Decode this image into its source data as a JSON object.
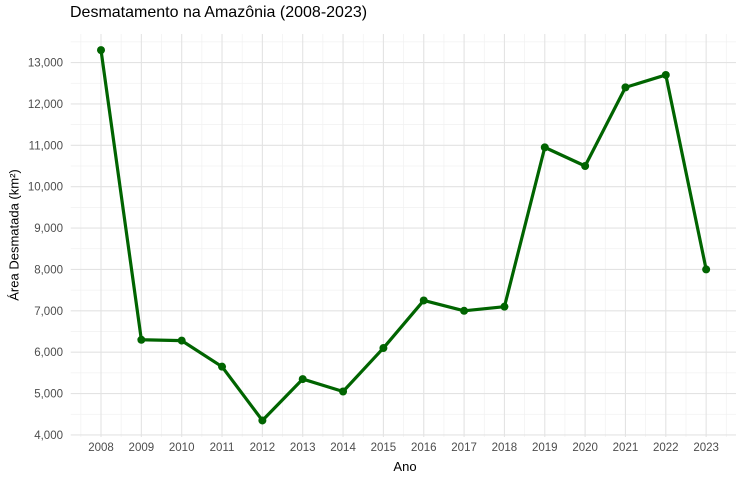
{
  "chart_data": {
    "type": "line",
    "title": "Desmatamento na Amazônia (2008-2023)",
    "xlabel": "Ano",
    "ylabel": "Área Desmatada (km²)",
    "categories": [
      2008,
      2009,
      2010,
      2011,
      2012,
      2013,
      2014,
      2015,
      2016,
      2017,
      2018,
      2019,
      2020,
      2021,
      2022,
      2023
    ],
    "values": [
      13300,
      6300,
      6280,
      5650,
      4350,
      5350,
      5050,
      6100,
      7250,
      7000,
      7100,
      10950,
      10500,
      12400,
      12700,
      8000
    ],
    "series_name": "Área Desmatada (km²)",
    "yticks": [
      4000,
      5000,
      6000,
      7000,
      8000,
      9000,
      10000,
      11000,
      12000,
      13000
    ],
    "ylim": [
      3950,
      13690
    ],
    "xlim": [
      2007.25,
      2023.74
    ],
    "grid": true,
    "legend": false,
    "colors": {
      "line": "#006400",
      "marker": "#006400",
      "grid_major": "#e3e3e3",
      "grid_minor": "#f1f1f1",
      "tick_label": "#4d4d4d",
      "background": "#ffffff",
      "title": "#000000"
    }
  }
}
